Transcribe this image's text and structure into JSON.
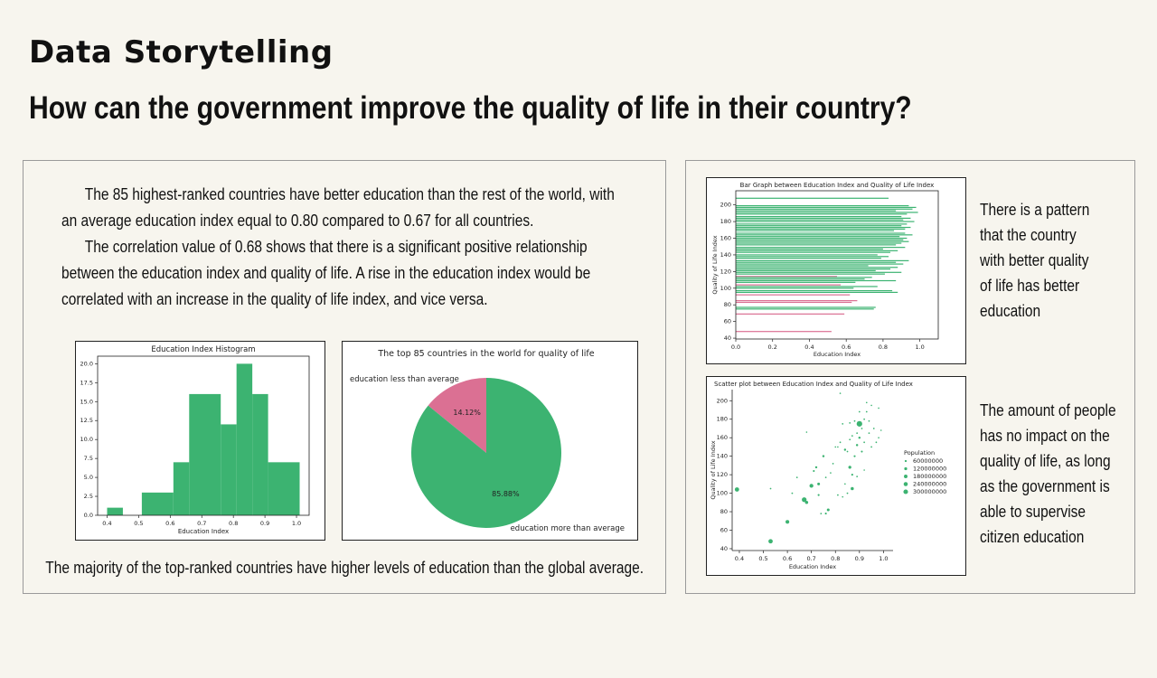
{
  "header": {
    "title": "Data Storytelling",
    "question": "How can the government improve the quality of life in their country?"
  },
  "narrative": {
    "p1": "The 85 highest-ranked countries have better education than the rest of the world, with an average education index equal to 0.80 compared to 0.67 for all countries.",
    "p2": "The correlation value of 0.68 shows that there is a significant positive relationship between the education index and quality of life. A rise in the education index would be correlated with an increase in the quality of life index, and vice versa."
  },
  "caption": "The majority of the top-ranked countries have higher levels of education than the global average.",
  "insights": {
    "bar": "There is a pattern that the country with better quality of life has better education",
    "scatter": "The amount of people has no impact on the quality of life, as long as the government is able to supervise citizen education"
  },
  "colors": {
    "green": "#3cb371",
    "pink": "#db7093"
  },
  "chart_data": [
    {
      "type": "bar",
      "title": "Education Index Histogram",
      "xlabel": "Education Index",
      "ylabel": "",
      "bins": [
        [
          0.4,
          0.45
        ],
        [
          0.45,
          0.51
        ],
        [
          0.51,
          0.61
        ],
        [
          0.61,
          0.66
        ],
        [
          0.66,
          0.76
        ],
        [
          0.76,
          0.81
        ],
        [
          0.81,
          0.86
        ],
        [
          0.86,
          0.91
        ],
        [
          0.91,
          1.01
        ]
      ],
      "values": [
        1,
        0,
        3,
        7,
        16,
        12,
        20,
        16,
        7
      ],
      "xticks": [
        "0.4",
        "0.5",
        "0.6",
        "0.7",
        "0.8",
        "0.9",
        "1.0"
      ],
      "xtick_values": [
        0.4,
        0.5,
        0.6,
        0.7,
        0.8,
        0.9,
        1.0
      ],
      "yticks": [
        "0.0",
        "2.5",
        "5.0",
        "7.5",
        "10.0",
        "12.5",
        "15.0",
        "17.5",
        "20.0"
      ],
      "ytick_values": [
        0,
        2.5,
        5,
        7.5,
        10,
        12.5,
        15,
        17.5,
        20
      ],
      "xlim": [
        0.37,
        1.04
      ],
      "ylim": [
        0,
        21
      ]
    },
    {
      "type": "pie",
      "title": "The top 85 countries in the world for quality of life",
      "labels": [
        "education less than average",
        "education more than average"
      ],
      "values": [
        14.12,
        85.88
      ],
      "pct_labels": [
        "14.12%",
        "85.88%"
      ],
      "colors": [
        "#db7093",
        "#3cb371"
      ]
    },
    {
      "type": "bar",
      "title": "Bar Graph between Education Index and Quality of Life Index",
      "xlabel": "Education Index",
      "ylabel": "Quality of Life Index",
      "orientation": "horizontal",
      "xticks": [
        "0.0",
        "0.2",
        "0.4",
        "0.6",
        "0.8",
        "1.0"
      ],
      "xtick_values": [
        0,
        0.2,
        0.4,
        0.6,
        0.8,
        1.0
      ],
      "yticks": [
        "40",
        "60",
        "80",
        "100",
        "120",
        "140",
        "160",
        "180",
        "200"
      ],
      "ytick_values": [
        40,
        60,
        80,
        100,
        120,
        140,
        160,
        180,
        200
      ],
      "xlim": [
        0,
        1.1
      ],
      "ylim": [
        39,
        217
      ],
      "bars": [
        {
          "y": 208,
          "x": 0.83,
          "c": "g"
        },
        {
          "y": 199,
          "x": 0.94,
          "c": "g"
        },
        {
          "y": 197,
          "x": 0.98,
          "c": "g"
        },
        {
          "y": 195,
          "x": 0.96,
          "c": "g"
        },
        {
          "y": 193,
          "x": 0.87,
          "c": "g"
        },
        {
          "y": 191,
          "x": 0.99,
          "c": "g"
        },
        {
          "y": 189,
          "x": 0.93,
          "c": "g"
        },
        {
          "y": 186,
          "x": 0.9,
          "c": "g"
        },
        {
          "y": 184,
          "x": 0.95,
          "c": "g"
        },
        {
          "y": 182,
          "x": 0.91,
          "c": "g"
        },
        {
          "y": 180,
          "x": 0.97,
          "c": "g"
        },
        {
          "y": 177,
          "x": 0.93,
          "c": "g"
        },
        {
          "y": 175,
          "x": 0.9,
          "c": "g"
        },
        {
          "y": 173,
          "x": 0.95,
          "c": "g"
        },
        {
          "y": 171,
          "x": 0.92,
          "c": "g"
        },
        {
          "y": 169,
          "x": 0.86,
          "c": "g"
        },
        {
          "y": 166,
          "x": 0.92,
          "c": "g"
        },
        {
          "y": 164,
          "x": 0.96,
          "c": "g"
        },
        {
          "y": 162,
          "x": 0.89,
          "c": "g"
        },
        {
          "y": 160,
          "x": 0.93,
          "c": "g"
        },
        {
          "y": 158,
          "x": 0.91,
          "c": "g"
        },
        {
          "y": 156,
          "x": 0.94,
          "c": "g"
        },
        {
          "y": 154,
          "x": 0.9,
          "c": "g"
        },
        {
          "y": 152,
          "x": 0.87,
          "c": "g"
        },
        {
          "y": 149,
          "x": 0.92,
          "c": "g"
        },
        {
          "y": 147,
          "x": 0.8,
          "c": "g"
        },
        {
          "y": 145,
          "x": 0.88,
          "c": "g"
        },
        {
          "y": 143,
          "x": 0.84,
          "c": "g"
        },
        {
          "y": 140,
          "x": 0.77,
          "c": "g"
        },
        {
          "y": 138,
          "x": 0.83,
          "c": "g"
        },
        {
          "y": 136,
          "x": 0.79,
          "c": "g"
        },
        {
          "y": 133,
          "x": 0.94,
          "c": "g"
        },
        {
          "y": 131,
          "x": 0.87,
          "c": "g"
        },
        {
          "y": 129,
          "x": 0.91,
          "c": "g"
        },
        {
          "y": 127,
          "x": 0.72,
          "c": "g"
        },
        {
          "y": 125,
          "x": 0.88,
          "c": "g"
        },
        {
          "y": 123,
          "x": 0.84,
          "c": "g"
        },
        {
          "y": 121,
          "x": 0.76,
          "c": "g"
        },
        {
          "y": 119,
          "x": 0.9,
          "c": "g"
        },
        {
          "y": 117,
          "x": 0.81,
          "c": "g"
        },
        {
          "y": 114,
          "x": 0.55,
          "c": "p"
        },
        {
          "y": 113,
          "x": 0.74,
          "c": "g"
        },
        {
          "y": 111,
          "x": 0.7,
          "c": "g"
        },
        {
          "y": 109,
          "x": 0.87,
          "c": "g"
        },
        {
          "y": 107,
          "x": 0.65,
          "c": "g"
        },
        {
          "y": 104,
          "x": 0.57,
          "c": "p"
        },
        {
          "y": 102,
          "x": 0.77,
          "c": "g"
        },
        {
          "y": 100,
          "x": 0.64,
          "c": "g"
        },
        {
          "y": 97,
          "x": 0.85,
          "c": "g"
        },
        {
          "y": 95,
          "x": 0.88,
          "c": "g"
        },
        {
          "y": 92,
          "x": 0.62,
          "c": "p"
        },
        {
          "y": 85,
          "x": 0.66,
          "c": "p"
        },
        {
          "y": 83,
          "x": 0.63,
          "c": "p"
        },
        {
          "y": 77,
          "x": 0.76,
          "c": "g"
        },
        {
          "y": 75,
          "x": 0.75,
          "c": "g"
        },
        {
          "y": 69,
          "x": 0.59,
          "c": "p"
        },
        {
          "y": 48,
          "x": 0.52,
          "c": "p"
        }
      ]
    },
    {
      "type": "scatter",
      "title": "Scatter plot between Education Index and Quality of Life Index",
      "xlabel": "Education Index",
      "ylabel": "Quality of Life Index",
      "xticks": [
        "0.4",
        "0.5",
        "0.6",
        "0.7",
        "0.8",
        "0.9",
        "1.0"
      ],
      "xtick_values": [
        0.4,
        0.5,
        0.6,
        0.7,
        0.8,
        0.9,
        1.0
      ],
      "yticks": [
        "40",
        "60",
        "80",
        "100",
        "120",
        "140",
        "160",
        "180",
        "200"
      ],
      "ytick_values": [
        40,
        60,
        80,
        100,
        120,
        140,
        160,
        180,
        200
      ],
      "xlim": [
        0.37,
        1.04
      ],
      "ylim": [
        38,
        212
      ],
      "legend_title": "Population",
      "legend_labels": [
        "60000000",
        "120000000",
        "180000000",
        "240000000",
        "300000000"
      ],
      "legend_sizes": [
        60000000,
        120000000,
        180000000,
        240000000,
        300000000
      ],
      "legend_placement": "right",
      "points": [
        {
          "x": 0.39,
          "y": 104,
          "s": 150000000
        },
        {
          "x": 0.53,
          "y": 48,
          "s": 150000000
        },
        {
          "x": 0.53,
          "y": 105,
          "s": 20000000
        },
        {
          "x": 0.6,
          "y": 69,
          "s": 110000000
        },
        {
          "x": 0.62,
          "y": 100,
          "s": 20000000
        },
        {
          "x": 0.64,
          "y": 117,
          "s": 20000000
        },
        {
          "x": 0.67,
          "y": 93,
          "s": 180000000
        },
        {
          "x": 0.68,
          "y": 90,
          "s": 80000000
        },
        {
          "x": 0.68,
          "y": 166,
          "s": 10000000
        },
        {
          "x": 0.7,
          "y": 108,
          "s": 120000000
        },
        {
          "x": 0.71,
          "y": 124,
          "s": 30000000
        },
        {
          "x": 0.72,
          "y": 128,
          "s": 40000000
        },
        {
          "x": 0.73,
          "y": 98,
          "s": 30000000
        },
        {
          "x": 0.73,
          "y": 110,
          "s": 60000000
        },
        {
          "x": 0.74,
          "y": 78,
          "s": 20000000
        },
        {
          "x": 0.75,
          "y": 140,
          "s": 40000000
        },
        {
          "x": 0.76,
          "y": 78,
          "s": 30000000
        },
        {
          "x": 0.76,
          "y": 117,
          "s": 20000000
        },
        {
          "x": 0.77,
          "y": 82,
          "s": 60000000
        },
        {
          "x": 0.78,
          "y": 122,
          "s": 10000000
        },
        {
          "x": 0.79,
          "y": 132,
          "s": 20000000
        },
        {
          "x": 0.8,
          "y": 150,
          "s": 10000000
        },
        {
          "x": 0.81,
          "y": 98,
          "s": 20000000
        },
        {
          "x": 0.81,
          "y": 150,
          "s": 10000000
        },
        {
          "x": 0.82,
          "y": 155,
          "s": 20000000
        },
        {
          "x": 0.82,
          "y": 208,
          "s": 10000000
        },
        {
          "x": 0.83,
          "y": 175,
          "s": 20000000
        },
        {
          "x": 0.83,
          "y": 96,
          "s": 10000000
        },
        {
          "x": 0.84,
          "y": 147,
          "s": 40000000
        },
        {
          "x": 0.84,
          "y": 110,
          "s": 10000000
        },
        {
          "x": 0.85,
          "y": 145,
          "s": 20000000
        },
        {
          "x": 0.85,
          "y": 100,
          "s": 20000000
        },
        {
          "x": 0.86,
          "y": 128,
          "s": 70000000
        },
        {
          "x": 0.86,
          "y": 158,
          "s": 20000000
        },
        {
          "x": 0.86,
          "y": 176,
          "s": 20000000
        },
        {
          "x": 0.87,
          "y": 162,
          "s": 20000000
        },
        {
          "x": 0.87,
          "y": 120,
          "s": 30000000
        },
        {
          "x": 0.87,
          "y": 105,
          "s": 80000000
        },
        {
          "x": 0.88,
          "y": 140,
          "s": 30000000
        },
        {
          "x": 0.88,
          "y": 178,
          "s": 20000000
        },
        {
          "x": 0.89,
          "y": 165,
          "s": 20000000
        },
        {
          "x": 0.89,
          "y": 152,
          "s": 40000000
        },
        {
          "x": 0.89,
          "y": 118,
          "s": 20000000
        },
        {
          "x": 0.9,
          "y": 175,
          "s": 250000000
        },
        {
          "x": 0.9,
          "y": 160,
          "s": 40000000
        },
        {
          "x": 0.9,
          "y": 188,
          "s": 20000000
        },
        {
          "x": 0.91,
          "y": 145,
          "s": 30000000
        },
        {
          "x": 0.91,
          "y": 170,
          "s": 20000000
        },
        {
          "x": 0.92,
          "y": 155,
          "s": 20000000
        },
        {
          "x": 0.92,
          "y": 180,
          "s": 20000000
        },
        {
          "x": 0.92,
          "y": 125,
          "s": 10000000
        },
        {
          "x": 0.93,
          "y": 198,
          "s": 10000000
        },
        {
          "x": 0.93,
          "y": 188,
          "s": 20000000
        },
        {
          "x": 0.94,
          "y": 165,
          "s": 20000000
        },
        {
          "x": 0.94,
          "y": 178,
          "s": 20000000
        },
        {
          "x": 0.95,
          "y": 195,
          "s": 10000000
        },
        {
          "x": 0.95,
          "y": 150,
          "s": 20000000
        },
        {
          "x": 0.96,
          "y": 170,
          "s": 20000000
        },
        {
          "x": 0.97,
          "y": 155,
          "s": 20000000
        },
        {
          "x": 0.98,
          "y": 160,
          "s": 10000000
        },
        {
          "x": 0.98,
          "y": 192,
          "s": 10000000
        },
        {
          "x": 0.99,
          "y": 168,
          "s": 10000000
        }
      ]
    }
  ]
}
